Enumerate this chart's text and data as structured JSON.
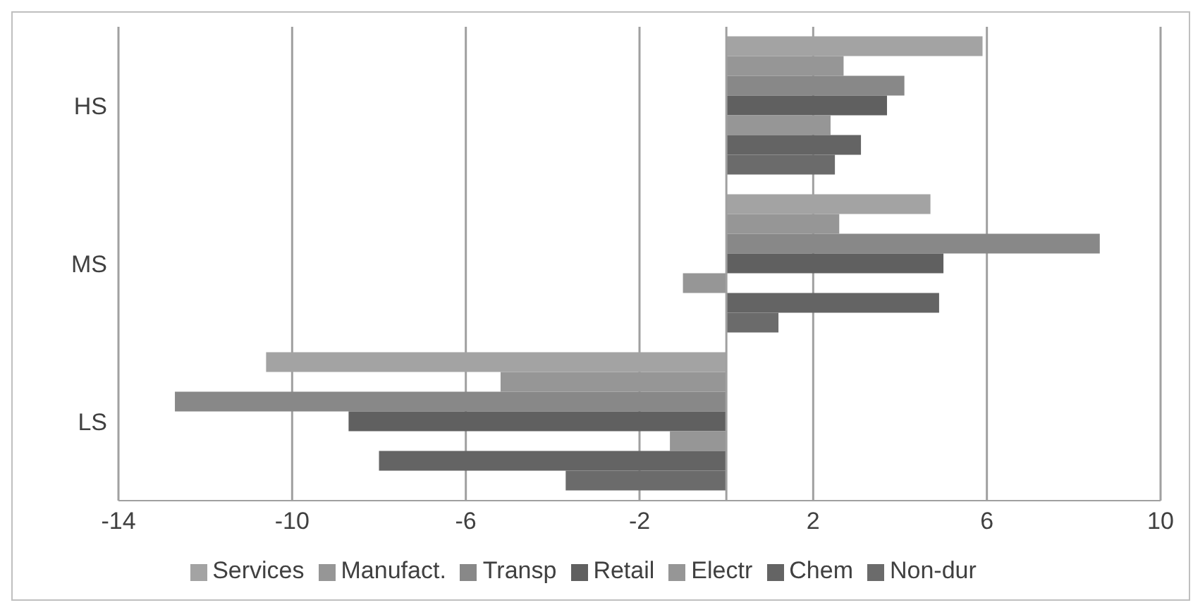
{
  "chart_data": {
    "type": "bar",
    "orientation": "horizontal",
    "categories": [
      "HS",
      "MS",
      "LS"
    ],
    "series": [
      {
        "name": "Services",
        "color": "#a3a3a3",
        "values": [
          5.9,
          4.7,
          -10.6
        ]
      },
      {
        "name": "Manufact.",
        "color": "#969696",
        "values": [
          2.7,
          2.6,
          -5.2
        ]
      },
      {
        "name": "Transp",
        "color": "#888888",
        "values": [
          4.1,
          8.6,
          -12.7
        ]
      },
      {
        "name": "Retail",
        "color": "#606060",
        "values": [
          3.7,
          5.0,
          -8.7
        ]
      },
      {
        "name": "Electr",
        "color": "#969696",
        "values": [
          2.4,
          -1.0,
          -1.3
        ]
      },
      {
        "name": "Chem",
        "color": "#646464",
        "values": [
          3.1,
          4.9,
          -8.0
        ]
      },
      {
        "name": "Non-dur",
        "color": "#6b6b6b",
        "values": [
          2.5,
          1.2,
          -3.7
        ]
      }
    ],
    "xlim": [
      -14,
      10
    ],
    "xticks": [
      -14,
      -10,
      -6,
      -2,
      2,
      6,
      10
    ],
    "grid": "x",
    "legend": "bottom"
  }
}
